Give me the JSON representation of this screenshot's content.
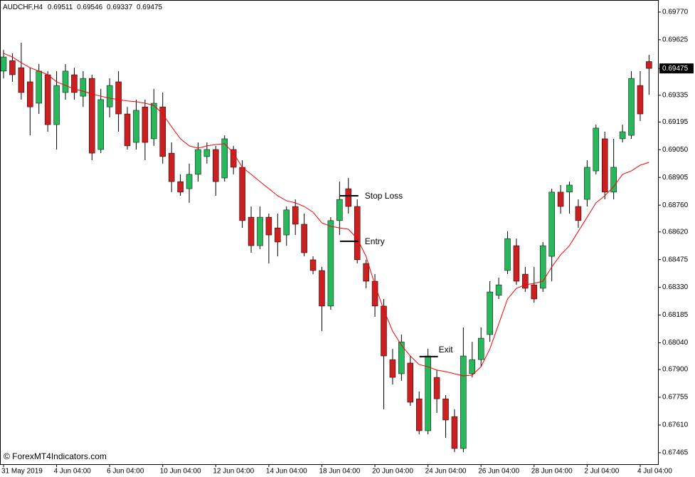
{
  "chart_data": {
    "type": "candlestick",
    "symbol": "AUDCHF,H4",
    "watermark": "© ForexMT4Indicators.com",
    "up_color": "#26b85a",
    "down_color": "#cc1f1f",
    "ylim": [
      0.67405,
      0.69833
    ],
    "yticks": [
      {
        "value": 0.6977,
        "label": "0.69770"
      },
      0.69625,
      0.69475,
      0.69335,
      0.69195,
      {
        "value": 0.6905,
        "label": "0.69050"
      },
      0.68905,
      {
        "value": 0.6876,
        "label": "0.68760"
      },
      {
        "value": 0.6862,
        "label": "0.68620"
      },
      0.68475,
      {
        "value": 0.6833,
        "label": "0.68330"
      },
      0.68185,
      {
        "value": 0.6804,
        "label": "0.68040"
      },
      {
        "value": 0.679,
        "label": "0.67900"
      },
      0.67755,
      {
        "value": 0.6761,
        "label": "0.67610"
      },
      0.67465
    ],
    "categories": [
      "31 May 2019",
      null,
      null,
      null,
      null,
      null,
      "4 Jun 04:00",
      null,
      null,
      null,
      null,
      null,
      "6 Jun 04:00",
      null,
      null,
      null,
      null,
      null,
      "10 Jun 04:00",
      null,
      null,
      null,
      null,
      null,
      "12 Jun 04:00",
      null,
      null,
      null,
      null,
      null,
      "14 Jun 04:00",
      null,
      null,
      null,
      null,
      null,
      "18 Jun 04:00",
      null,
      null,
      null,
      null,
      null,
      "20 Jun 04:00",
      null,
      null,
      null,
      null,
      null,
      "24 Jun 04:00",
      null,
      null,
      null,
      null,
      null,
      "26 Jun 04:00",
      null,
      null,
      null,
      null,
      null,
      "28 Jun 04:00",
      null,
      null,
      null,
      null,
      null,
      "2 Jul 04:00",
      null,
      null,
      null,
      null,
      null,
      "4 Jul 04:00",
      null
    ],
    "open": [
      0.69461,
      0.69516,
      0.69479,
      0.69405,
      0.69293,
      0.69442,
      0.69181,
      0.69349,
      0.69442,
      0.6933,
      0.69423,
      0.69051,
      0.69274,
      0.69405,
      0.69237,
      0.69088,
      0.69274,
      0.69107,
      0.69274,
      0.69032,
      0.68883,
      0.68846,
      0.68921,
      0.69014,
      0.69051,
      0.68902,
      0.69051,
      0.68958,
      0.68697,
      0.68548,
      0.68697,
      0.68641,
      0.68604,
      0.68753,
      0.6866,
      0.68474,
      0.68418,
      0.68232,
      0.68679,
      0.68846,
      0.68753,
      0.68455,
      0.68362,
      0.68232,
      0.67952,
      0.67878,
      0.67934,
      0.67747,
      0.6758,
      0.67859,
      0.67747,
      0.67654,
      0.67487,
      0.67878,
      0.67952,
      0.68083,
      0.68288,
      0.68418,
      0.68548,
      0.68399,
      0.68343,
      0.68325,
      0.68492,
      0.68828,
      0.68828,
      0.68753,
      0.6879,
      0.68939,
      0.69107,
      0.68828,
      0.69107,
      0.69125,
      0.69386,
      0.69511
    ],
    "high": [
      0.69572,
      0.69554,
      0.6961,
      0.69479,
      0.69498,
      0.69461,
      0.69461,
      0.69498,
      0.69479,
      0.69461,
      0.69442,
      0.69368,
      0.69423,
      0.69461,
      0.69274,
      0.69312,
      0.69312,
      0.69368,
      0.69349,
      0.69088,
      0.68921,
      0.68977,
      0.69088,
      0.69088,
      0.6907,
      0.69125,
      0.6907,
      0.68995,
      0.68753,
      0.68753,
      0.68716,
      0.68716,
      0.68753,
      0.6879,
      0.68716,
      0.68492,
      0.68437,
      0.68697,
      0.68883,
      0.68902,
      0.6879,
      0.68474,
      0.68399,
      0.68269,
      0.68008,
      0.68083,
      0.67971,
      0.67785,
      0.68008,
      0.67897,
      0.67766,
      0.67692,
      0.6812,
      0.68045,
      0.6812,
      0.68362,
      0.68381,
      0.68623,
      0.68585,
      0.68437,
      0.68437,
      0.68567,
      0.68846,
      0.68865,
      0.68883,
      0.6879,
      0.68995,
      0.69181,
      0.69144,
      0.69107,
      0.69181,
      0.69461,
      0.69461,
      0.69546
    ],
    "low": [
      0.69423,
      0.69405,
      0.69312,
      0.69125,
      0.69237,
      0.69144,
      0.69051,
      0.69312,
      0.69312,
      0.69274,
      0.68995,
      0.69032,
      0.69219,
      0.69144,
      0.69051,
      0.69051,
      0.68995,
      0.6907,
      0.68977,
      0.68828,
      0.68809,
      0.68772,
      0.68883,
      0.68977,
      0.68809,
      0.68883,
      0.68921,
      0.68641,
      0.68511,
      0.6853,
      0.68455,
      0.68492,
      0.68548,
      0.68604,
      0.68492,
      0.68399,
      0.68101,
      0.68213,
      0.68604,
      0.68716,
      0.68455,
      0.68325,
      0.68176,
      0.67692,
      0.67822,
      0.67841,
      0.6771,
      0.67561,
      0.67561,
      0.67673,
      0.67543,
      0.67468,
      0.67468,
      0.67859,
      0.67915,
      0.68045,
      0.68269,
      0.68399,
      0.68343,
      0.68306,
      0.6825,
      0.68306,
      0.68362,
      0.68716,
      0.68716,
      0.68641,
      0.68753,
      0.68921,
      0.6879,
      0.6879,
      0.69088,
      0.69107,
      0.692,
      0.69337
    ],
    "close": [
      0.69535,
      0.69442,
      0.69349,
      0.69274,
      0.69461,
      0.69181,
      0.69386,
      0.69461,
      0.69349,
      0.69423,
      0.69032,
      0.69312,
      0.69386,
      0.69237,
      0.6907,
      0.69256,
      0.69088,
      0.69293,
      0.69014,
      0.68883,
      0.68828,
      0.68921,
      0.69051,
      0.69051,
      0.68883,
      0.69107,
      0.68958,
      0.68679,
      0.68548,
      0.68697,
      0.68604,
      0.68567,
      0.68735,
      0.6866,
      0.68511,
      0.68418,
      0.68232,
      0.68679,
      0.6879,
      0.68753,
      0.68474,
      0.68362,
      0.68232,
      0.67971,
      0.67859,
      0.68045,
      0.67729,
      0.6758,
      0.67971,
      0.67747,
      0.67636,
      0.67487,
      0.67971,
      0.67952,
      0.68064,
      0.68306,
      0.68343,
      0.68585,
      0.68362,
      0.68325,
      0.68269,
      0.68548,
      0.68828,
      0.68753,
      0.68865,
      0.68679,
      0.68958,
      0.69163,
      0.68828,
      0.68958,
      0.69144,
      0.69423,
      0.69237,
      0.69475
    ],
    "ma": {
      "color": "#ff0000",
      "values": [
        0.69554,
        0.69535,
        0.69505,
        0.69479,
        0.69461,
        0.69442,
        0.69405,
        0.69386,
        0.69368,
        0.69356,
        0.69341,
        0.6933,
        0.69319,
        0.69312,
        0.69305,
        0.69301,
        0.69293,
        0.69282,
        0.69237,
        0.6917,
        0.69107,
        0.6907,
        0.69058,
        0.6907,
        0.69077,
        0.69081,
        0.69032,
        0.68958,
        0.68921,
        0.68883,
        0.68846,
        0.68809,
        0.68783,
        0.68772,
        0.68753,
        0.68723,
        0.68667,
        0.68649,
        0.68641,
        0.68634,
        0.68585,
        0.68492,
        0.68343,
        0.68213,
        0.68101,
        0.68027,
        0.67971,
        0.67926,
        0.67915,
        0.67897,
        0.67889,
        0.67878,
        0.67867,
        0.67871,
        0.67915,
        0.68008,
        0.68139,
        0.68269,
        0.68325,
        0.68343,
        0.68351,
        0.68362,
        0.68437,
        0.685,
        0.68548,
        0.68623,
        0.68697,
        0.68772,
        0.68809,
        0.68857,
        0.68921,
        0.68939,
        0.68969,
        0.68984
      ]
    },
    "annotations": [
      {
        "text": "Stop Loss",
        "price": 0.68809,
        "at": 39
      },
      {
        "text": "Entry",
        "price": 0.68571,
        "at": 39
      },
      {
        "text": "Exit",
        "price": 0.67968,
        "at": 48
      }
    ]
  }
}
